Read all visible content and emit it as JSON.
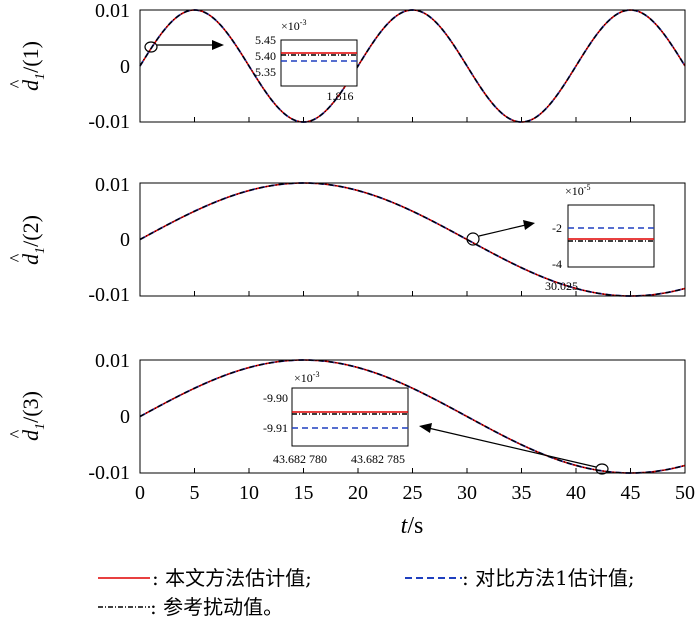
{
  "chart_data": [
    {
      "type": "line",
      "ylabel_var": "d",
      "ylabel_sub": "1",
      "ylabel_idx": "/(1)",
      "xlim": [
        0,
        50
      ],
      "ylim": [
        -0.01,
        0.01
      ],
      "yticks": [
        "0.01",
        "0",
        "-0.01"
      ],
      "period": 20,
      "amplitude": 0.01,
      "series": [
        {
          "name": "本文方法估计值",
          "color": "#e00000",
          "style": "solid",
          "formula": "0.01*sin(2*pi*t/20)"
        },
        {
          "name": "对比方法1估计值",
          "color": "#1f3fbf",
          "style": "dashed",
          "formula": "0.01*sin(2*pi*t/20)"
        },
        {
          "name": "参考扰动值",
          "color": "#000000",
          "style": "dashdot",
          "formula": "0.01*sin(2*pi*t/20)"
        }
      ],
      "inset": {
        "exponent": "×10",
        "exponent_power": "-3",
        "yticks": [
          "5.45",
          "5.40",
          "5.35"
        ],
        "xticks": [
          "1.816"
        ],
        "marker_x": 1.0
      }
    },
    {
      "type": "line",
      "ylabel_var": "d",
      "ylabel_sub": "1",
      "ylabel_idx": "/(2)",
      "xlim": [
        0,
        50
      ],
      "ylim": [
        -0.01,
        0.01
      ],
      "yticks": [
        "0.01",
        "0",
        "-0.01"
      ],
      "period": 60,
      "amplitude": 0.01,
      "inset": {
        "exponent": "×10",
        "exponent_power": "-5",
        "yticks": [
          "-2",
          "-4"
        ],
        "xticks": [
          "30.025"
        ],
        "marker_x": 30.5
      }
    },
    {
      "type": "line",
      "ylabel_var": "d",
      "ylabel_sub": "1",
      "ylabel_idx": "/(3)",
      "xlim": [
        0,
        50
      ],
      "ylim": [
        -0.01,
        0.01
      ],
      "yticks": [
        "0.01",
        "0",
        "-0.01"
      ],
      "xticks": [
        "0",
        "5",
        "10",
        "15",
        "20",
        "25",
        "30",
        "35",
        "40",
        "45",
        "50"
      ],
      "xlabel_var": "t",
      "xlabel_unit": "/s",
      "period": 60,
      "amplitude": 0.01,
      "inset": {
        "exponent": "×10",
        "exponent_power": "-3",
        "yticks": [
          "-9.90",
          "-9.91"
        ],
        "xticks": [
          "43.682 780",
          "43.682 785"
        ],
        "marker_x": 42.3
      }
    }
  ],
  "legend": [
    {
      "sym": "solid",
      "color": "#e00000",
      "label": ": 本文方法估计值;"
    },
    {
      "sym": "dashed",
      "color": "#1f3fbf",
      "label": ": 对比方法1估计值;"
    },
    {
      "sym": "dashdot",
      "color": "#000000",
      "label": ": 参考扰动值。"
    }
  ]
}
